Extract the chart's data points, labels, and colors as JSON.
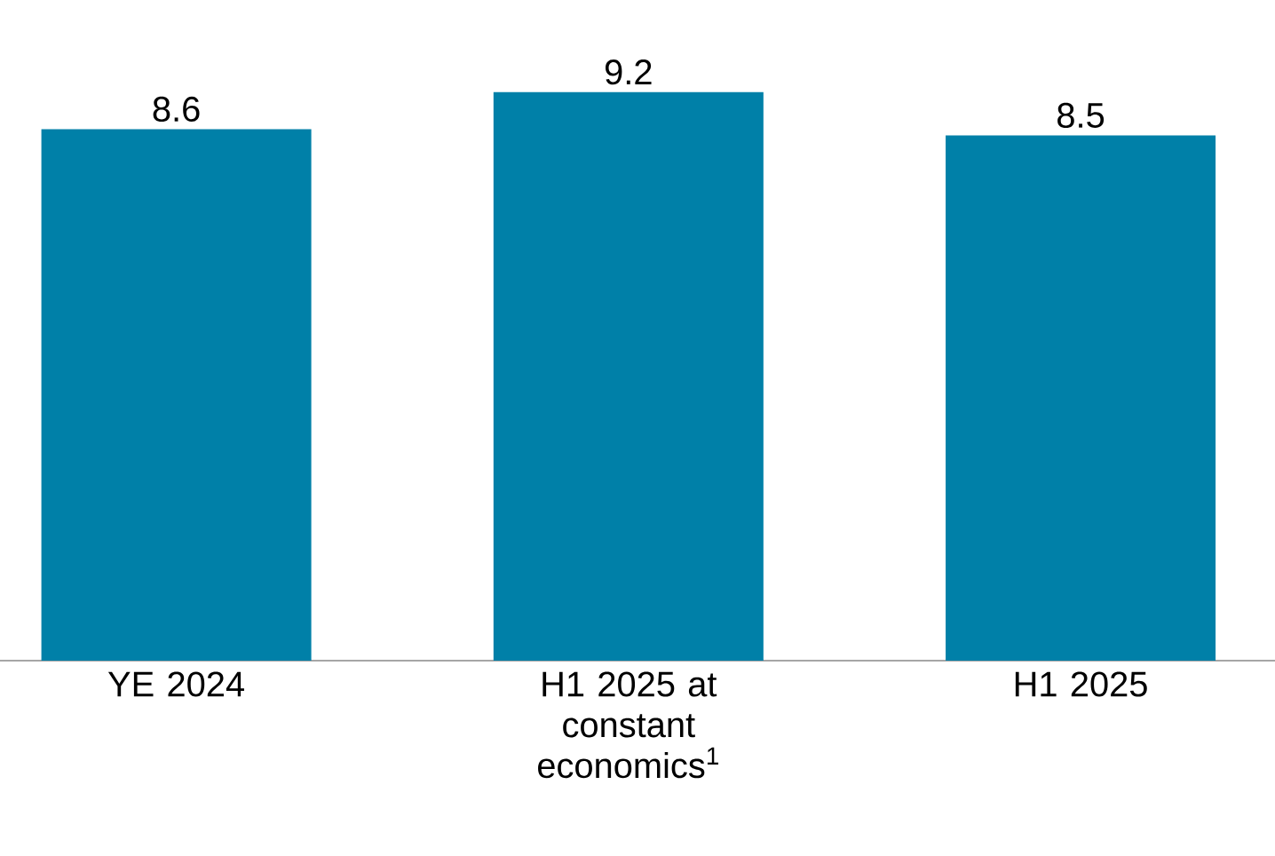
{
  "chart_data": {
    "type": "bar",
    "categories": [
      "YE 2024",
      "H1 2025 at constant economics$^{1}$",
      "H1 2025"
    ],
    "values": [
      8.6,
      9.2,
      8.5
    ],
    "color": "#0080a8",
    "data_labels": true
  }
}
